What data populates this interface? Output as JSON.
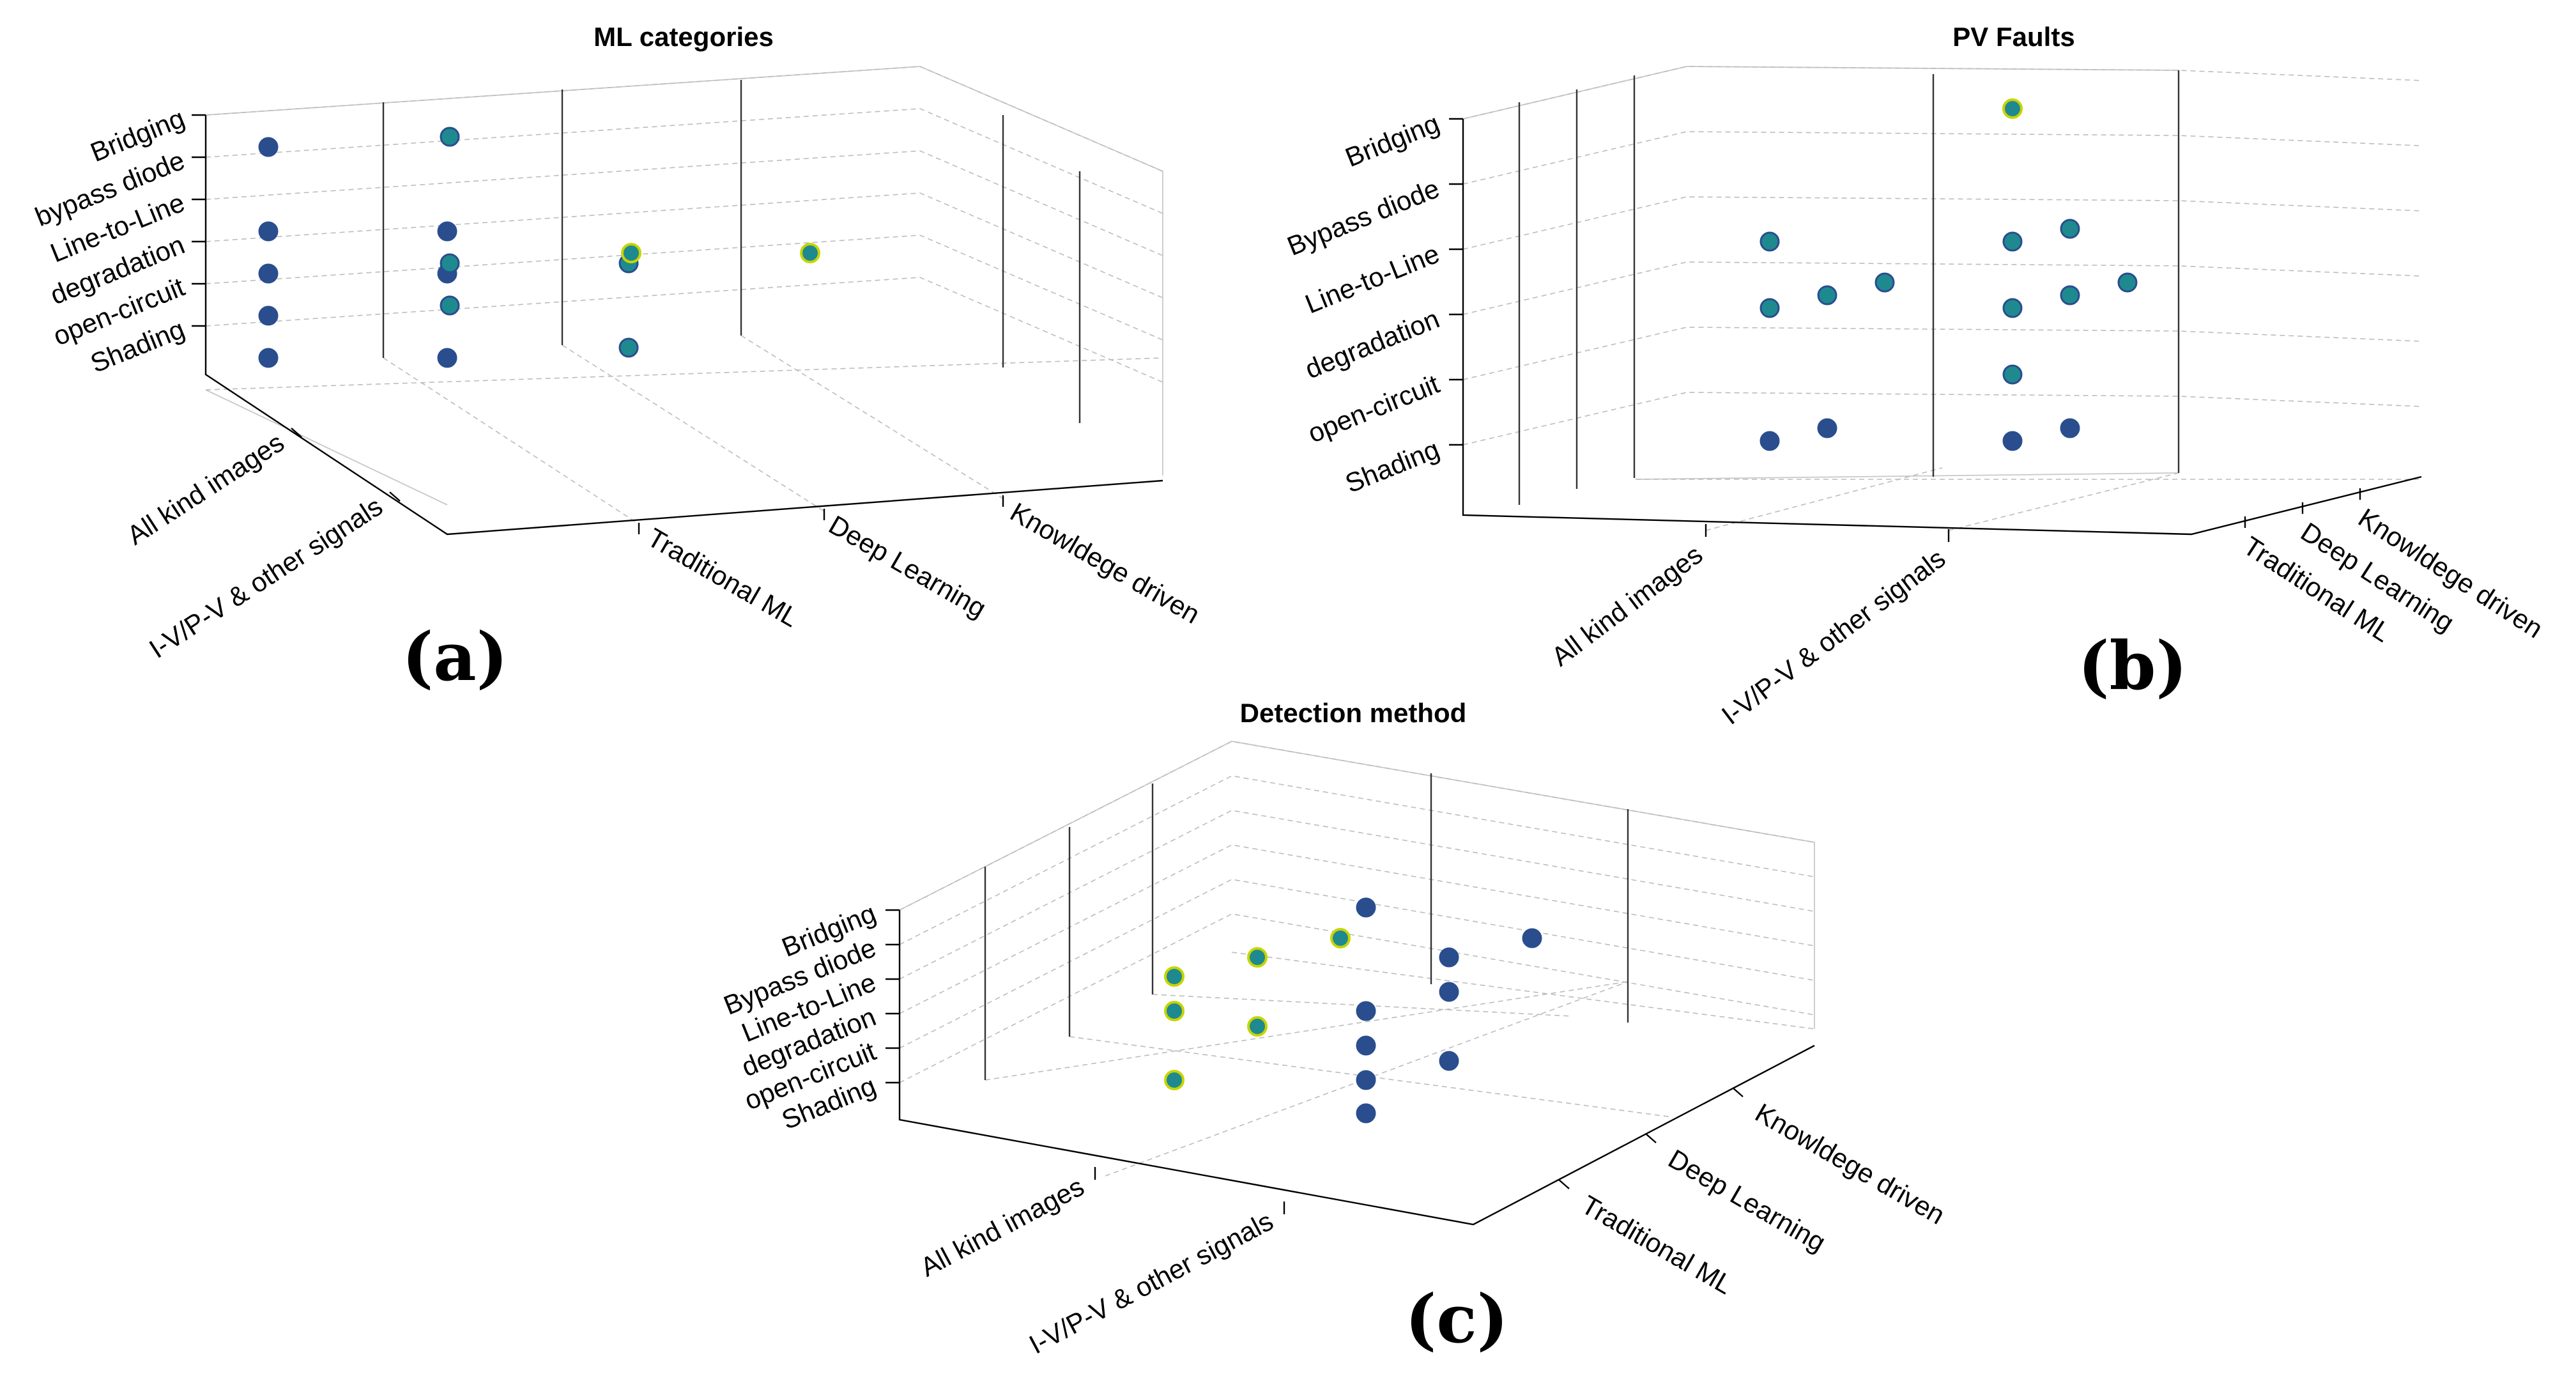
{
  "colors": {
    "navy": "#2a4d8e",
    "teal": "#1e8a8f",
    "yellow_green": "#c8d400",
    "background": "#ffffff"
  },
  "chart_data": [
    {
      "type": "scatter",
      "title": "ML categories",
      "panel_label": "(a)",
      "x_categories": [
        "All kind images",
        "I-V/P-V & other signals"
      ],
      "y_categories": [
        "Traditional ML",
        "Deep Learning",
        "Knowldege driven"
      ],
      "z_categories": [
        "Shading",
        "open-circuit",
        "degradation",
        "Line-to-Line",
        "bypass diode",
        "Bridging"
      ],
      "grid": true,
      "points": [
        {
          "x": "All kind images",
          "y": "Traditional ML",
          "z": "Line-to-Line",
          "color": "navy"
        },
        {
          "x": "All kind images",
          "y": "Traditional ML",
          "z": "degradation",
          "color": "navy"
        },
        {
          "x": "All kind images",
          "y": "Traditional ML",
          "z": "Shading",
          "color": "navy"
        },
        {
          "x": "I-V/P-V & other signals",
          "y": "Traditional ML",
          "z": "Line-to-Line",
          "color": "navy"
        },
        {
          "x": "I-V/P-V & other signals",
          "y": "Traditional ML",
          "z": "degradation",
          "color": "navy"
        },
        {
          "x": "I-V/P-V & other signals",
          "y": "Traditional ML",
          "z": "open-circuit",
          "color": "navy"
        },
        {
          "x": "I-V/P-V & other signals",
          "y": "Traditional ML",
          "z": "Shading",
          "color": "navy"
        },
        {
          "x": "I-V/P-V & other signals",
          "y": "Traditional ML",
          "z": "Bridging",
          "color": "navy"
        },
        {
          "x": "All kind images",
          "y": "Deep Learning",
          "z": "degradation",
          "color": "teal"
        },
        {
          "x": "All kind images",
          "y": "Deep Learning",
          "z": "Shading",
          "color": "teal"
        },
        {
          "x": "I-V/P-V & other signals",
          "y": "Deep Learning",
          "z": "degradation",
          "color": "teal"
        },
        {
          "x": "I-V/P-V & other signals",
          "y": "Deep Learning",
          "z": "open-circuit",
          "color": "teal"
        },
        {
          "x": "I-V/P-V & other signals",
          "y": "Deep Learning",
          "z": "Bridging",
          "color": "teal"
        },
        {
          "x": "All kind images",
          "y": "Knowldege driven",
          "z": "degradation",
          "color": "yellow_green"
        },
        {
          "x": "I-V/P-V & other signals",
          "y": "Knowldege driven",
          "z": "degradation",
          "color": "yellow_green"
        }
      ]
    },
    {
      "type": "scatter",
      "title": "PV Faults",
      "panel_label": "(b)",
      "x_categories": [
        "All kind images",
        "I-V/P-V & other signals"
      ],
      "y_categories": [
        "Traditional ML",
        "Deep Learning",
        "Knowldege driven"
      ],
      "z_categories": [
        "Shading",
        "open-circuit",
        "degradation",
        "Line-to-Line",
        "Bypass diode",
        "Bridging"
      ],
      "grid": true,
      "points": [
        {
          "x": "All kind images",
          "y": "Traditional ML",
          "z": "Shading",
          "color": "navy"
        },
        {
          "x": "All kind images",
          "y": "Deep Learning",
          "z": "Shading",
          "color": "navy"
        },
        {
          "x": "All kind images",
          "y": "Traditional ML",
          "z": "degradation",
          "color": "teal"
        },
        {
          "x": "All kind images",
          "y": "Deep Learning",
          "z": "degradation",
          "color": "teal"
        },
        {
          "x": "All kind images",
          "y": "Knowldege driven",
          "z": "degradation",
          "color": "teal"
        },
        {
          "x": "All kind images",
          "y": "Traditional ML",
          "z": "Line-to-Line",
          "color": "teal"
        },
        {
          "x": "I-V/P-V & other signals",
          "y": "Traditional ML",
          "z": "Shading",
          "color": "navy"
        },
        {
          "x": "I-V/P-V & other signals",
          "y": "Deep Learning",
          "z": "Shading",
          "color": "navy"
        },
        {
          "x": "I-V/P-V & other signals",
          "y": "Traditional ML",
          "z": "open-circuit",
          "color": "teal"
        },
        {
          "x": "I-V/P-V & other signals",
          "y": "Traditional ML",
          "z": "degradation",
          "color": "teal"
        },
        {
          "x": "I-V/P-V & other signals",
          "y": "Deep Learning",
          "z": "degradation",
          "color": "teal"
        },
        {
          "x": "I-V/P-V & other signals",
          "y": "Knowldege driven",
          "z": "degradation",
          "color": "teal"
        },
        {
          "x": "I-V/P-V & other signals",
          "y": "Traditional ML",
          "z": "Line-to-Line",
          "color": "teal"
        },
        {
          "x": "I-V/P-V & other signals",
          "y": "Deep Learning",
          "z": "Line-to-Line",
          "color": "teal"
        },
        {
          "x": "I-V/P-V & other signals",
          "y": "Traditional ML",
          "z": "Bridging",
          "color": "yellow_green"
        }
      ]
    },
    {
      "type": "scatter",
      "title": "Detection method",
      "panel_label": "(c)",
      "x_categories": [
        "All kind images",
        "I-V/P-V & other signals"
      ],
      "y_categories": [
        "Traditional ML",
        "Deep Learning",
        "Knowldege driven"
      ],
      "z_categories": [
        "Shading",
        "open-circuit",
        "degradation",
        "Line-to-Line",
        "Bypass diode",
        "Bridging"
      ],
      "grid": true,
      "points": [
        {
          "x": "All kind images",
          "y": "Traditional ML",
          "z": "Line-to-Line",
          "color": "yellow_green"
        },
        {
          "x": "All kind images",
          "y": "Traditional ML",
          "z": "degradation",
          "color": "yellow_green"
        },
        {
          "x": "All kind images",
          "y": "Traditional ML",
          "z": "Shading",
          "color": "yellow_green"
        },
        {
          "x": "All kind images",
          "y": "Deep Learning",
          "z": "Line-to-Line",
          "color": "yellow_green"
        },
        {
          "x": "All kind images",
          "y": "Deep Learning",
          "z": "open-circuit",
          "color": "yellow_green"
        },
        {
          "x": "All kind images",
          "y": "Knowldege driven",
          "z": "Line-to-Line",
          "color": "yellow_green"
        },
        {
          "x": "I-V/P-V & other signals",
          "y": "Traditional ML",
          "z": "Bridging",
          "color": "navy"
        },
        {
          "x": "I-V/P-V & other signals",
          "y": "Traditional ML",
          "z": "degradation",
          "color": "navy"
        },
        {
          "x": "I-V/P-V & other signals",
          "y": "Traditional ML",
          "z": "open-circuit",
          "color": "navy"
        },
        {
          "x": "I-V/P-V & other signals",
          "y": "Traditional ML",
          "z": "Shading",
          "color": "navy"
        },
        {
          "x": "I-V/P-V & other signals",
          "y": "Traditional ML",
          "z": "Shading",
          "color": "navy"
        },
        {
          "x": "I-V/P-V & other signals",
          "y": "Deep Learning",
          "z": "Line-to-Line",
          "color": "navy"
        },
        {
          "x": "I-V/P-V & other signals",
          "y": "Deep Learning",
          "z": "degradation",
          "color": "navy"
        },
        {
          "x": "I-V/P-V & other signals",
          "y": "Deep Learning",
          "z": "Shading",
          "color": "navy"
        },
        {
          "x": "I-V/P-V & other signals",
          "y": "Knowldege driven",
          "z": "Line-to-Line",
          "color": "navy"
        }
      ]
    }
  ]
}
